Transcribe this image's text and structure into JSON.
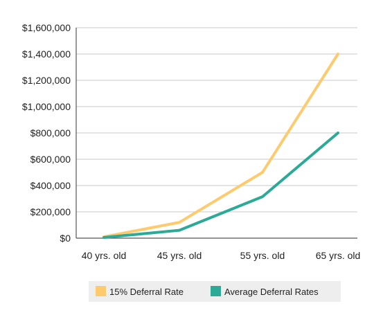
{
  "chart_data": {
    "type": "line",
    "title": "",
    "xlabel": "",
    "ylabel": "",
    "categories": [
      "40 yrs. old",
      "45 yrs. old",
      "55 yrs. old",
      "65 yrs. old"
    ],
    "x_positions": [
      0,
      1,
      2.1,
      3.1
    ],
    "ylim": [
      0,
      1600000
    ],
    "y_ticks": [
      0,
      200000,
      400000,
      600000,
      800000,
      1000000,
      1200000,
      1400000,
      1600000
    ],
    "y_tick_labels": [
      "$0",
      "$200,000",
      "$400,000",
      "$600,000",
      "$800,000",
      "$1,000,000",
      "$1,200,000",
      "$1,400,000",
      "$1,600,000"
    ],
    "grid": "horizontal",
    "legend_position": "bottom-center",
    "series": [
      {
        "name": "15% Deferral Rate",
        "color": "#FDCB6E",
        "x": [
          0,
          1,
          2.1,
          3.1
        ],
        "values": [
          10000,
          120000,
          500000,
          1400000
        ]
      },
      {
        "name": "Average Deferral Rates",
        "color": "#2BAA98",
        "x": [
          0,
          1,
          2.1,
          3.1
        ],
        "values": [
          5000,
          60000,
          315000,
          800000
        ]
      }
    ]
  },
  "legend_bg": "#EEEEEE"
}
